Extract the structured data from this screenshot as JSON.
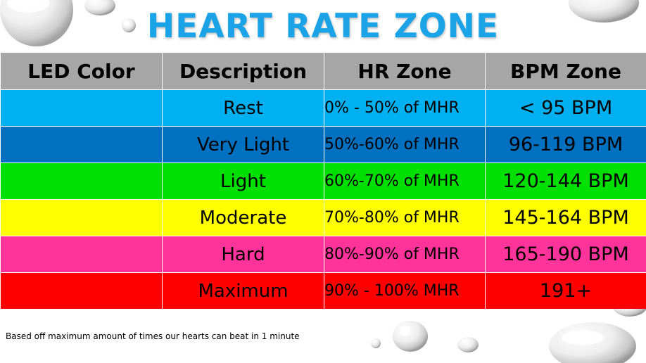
{
  "title": "HEART RATE ZONE",
  "columns": [
    "LED Color",
    "Description",
    "HR Zone",
    "BPM Zone"
  ],
  "rows": [
    {
      "color": "#00b0f0",
      "description": "Rest",
      "hr_zone": "0% - 50% of MHR",
      "bpm_zone": "< 95 BPM"
    },
    {
      "color": "#0070c0",
      "description": "Very Light",
      "hr_zone": "50%-60% of MHR",
      "bpm_zone": "96-119 BPM"
    },
    {
      "color": "#00e000",
      "description": "Light",
      "hr_zone": "60%-70% of MHR",
      "bpm_zone": "120-144 BPM"
    },
    {
      "color": "#ffff00",
      "description": "Moderate",
      "hr_zone": "70%-80% of MHR",
      "bpm_zone": "145-164 BPM"
    },
    {
      "color": "#ff3399",
      "description": "Hard",
      "hr_zone": "80%-90% of MHR",
      "bpm_zone": "165-190 BPM"
    },
    {
      "color": "#ff0000",
      "description": "Maximum",
      "hr_zone": "90% - 100% MHR",
      "bpm_zone": "191+"
    }
  ],
  "footnote": "Based off maximum  amount  of times our hearts can beat in 1 minute"
}
